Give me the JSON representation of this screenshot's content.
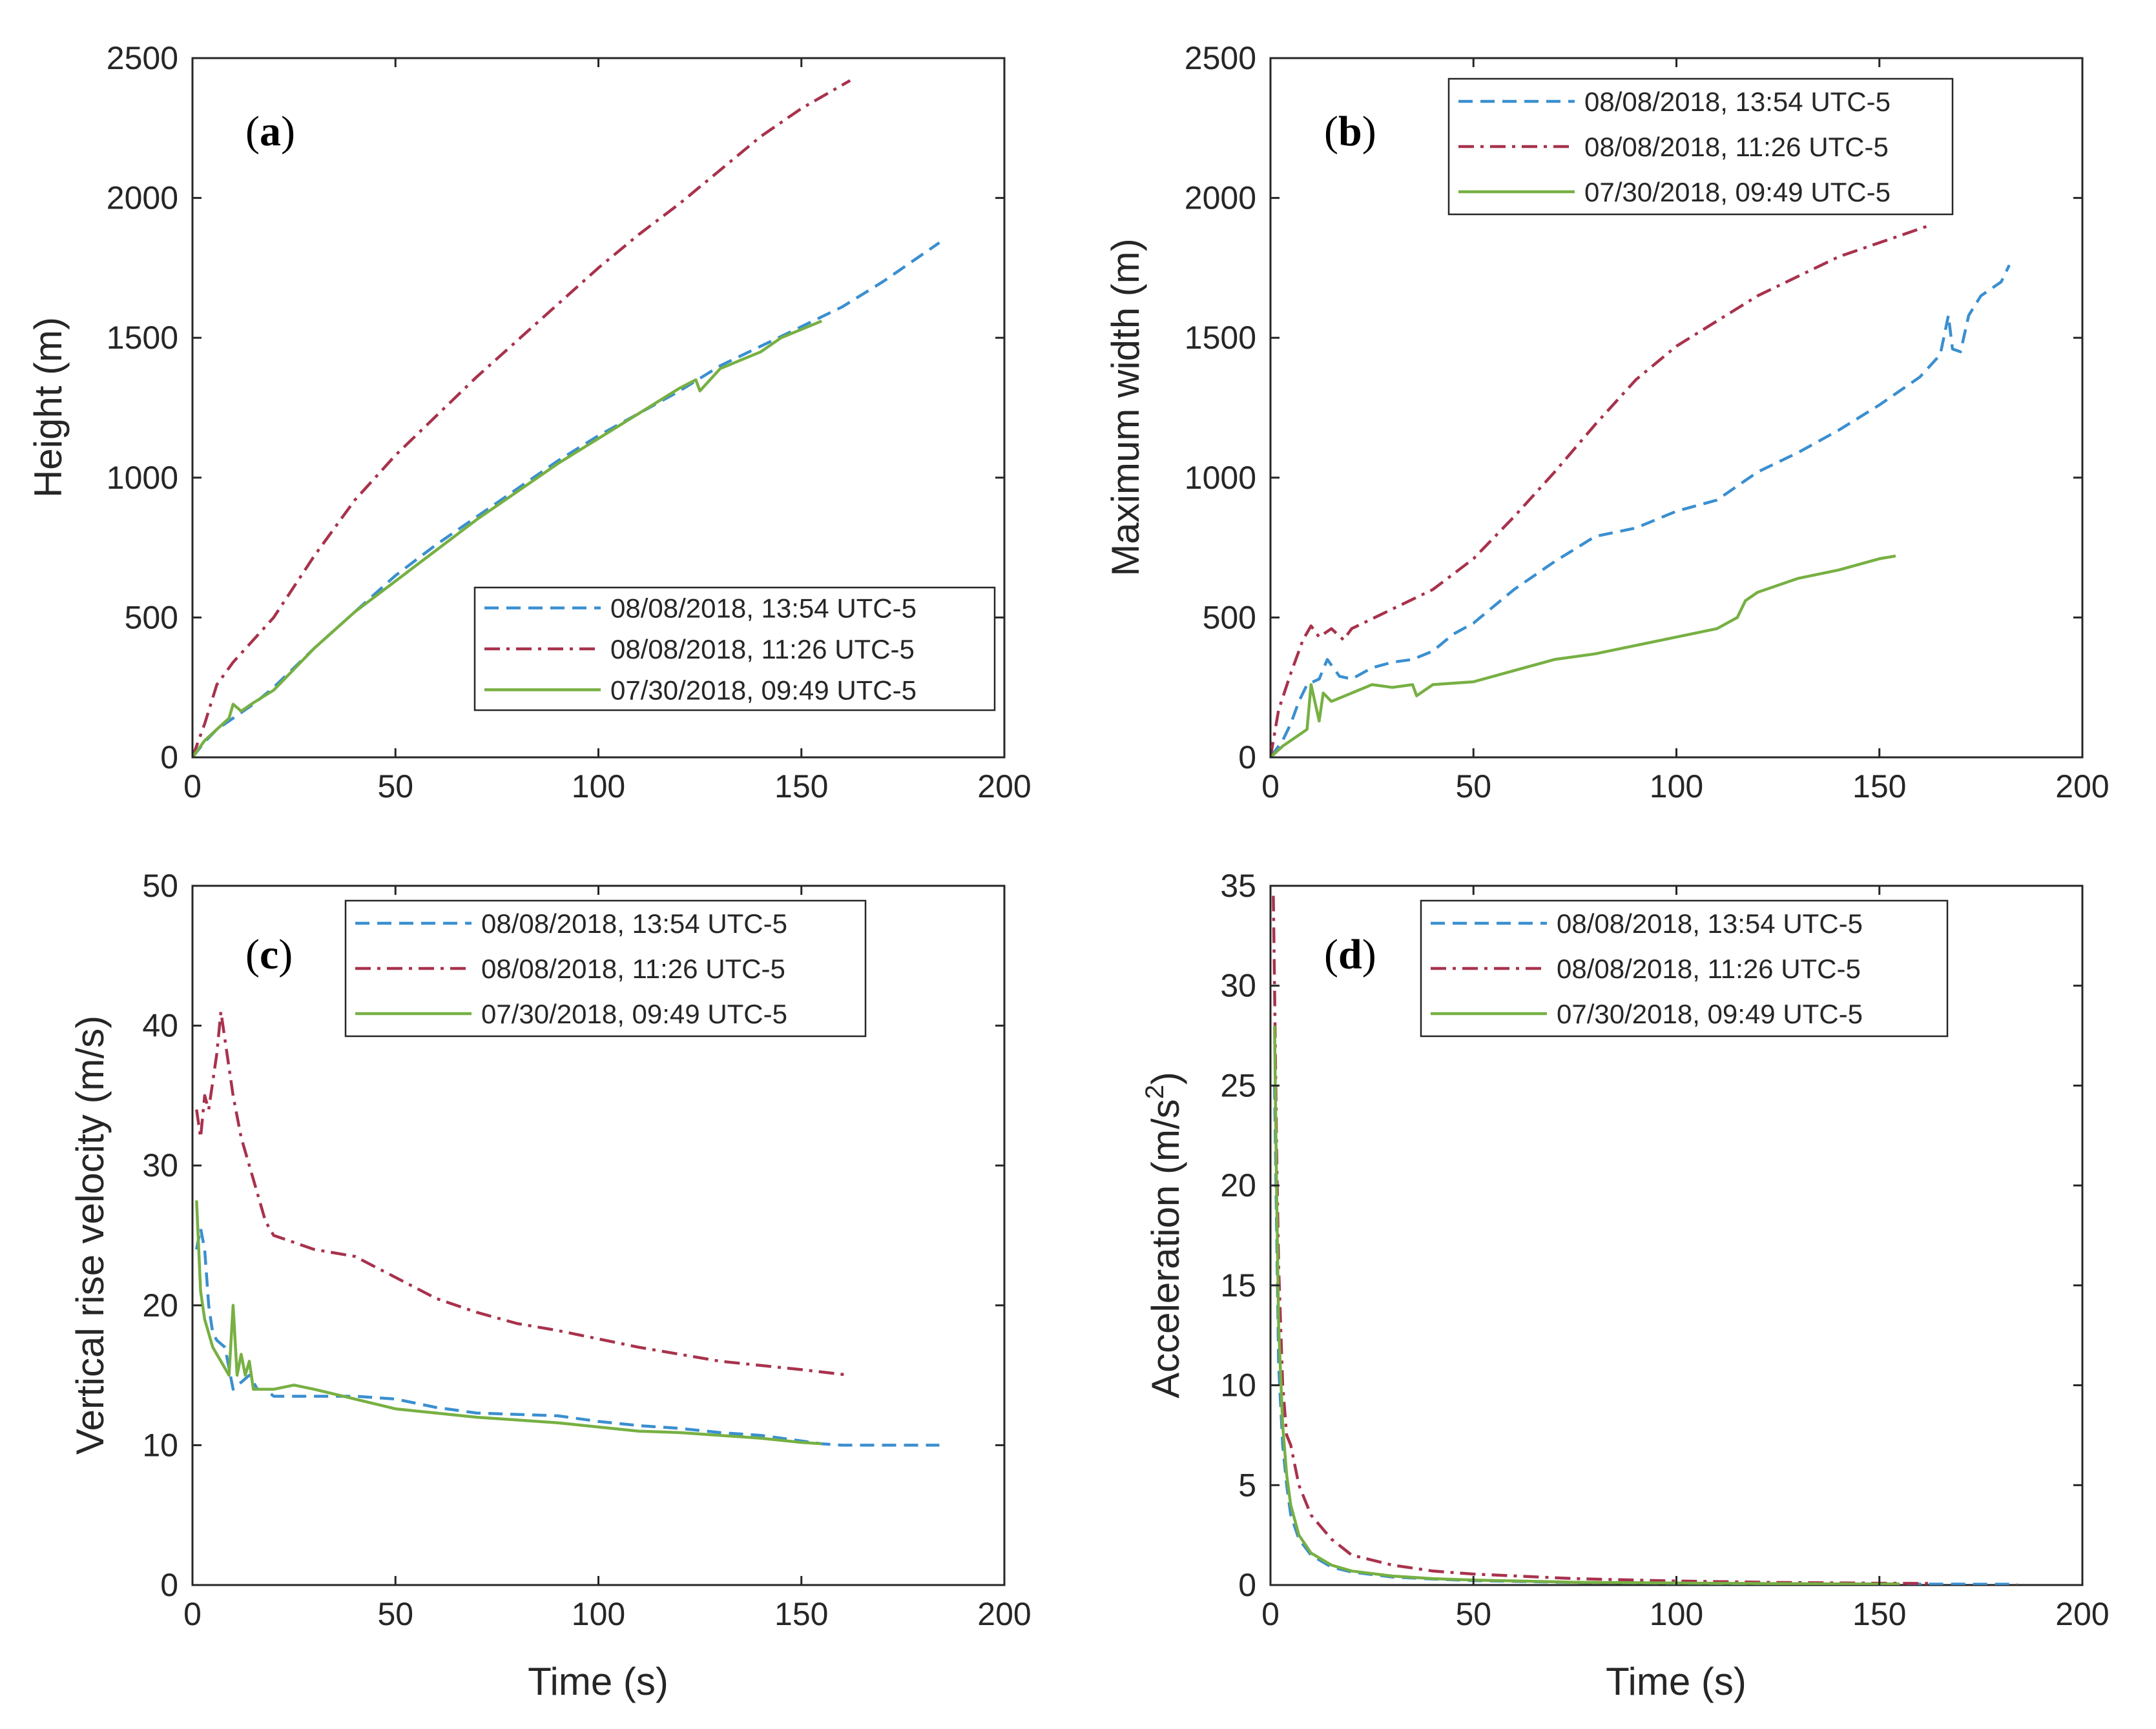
{
  "figure": {
    "legend_entries": [
      "08/08/2018, 13:54 UTC-5",
      "08/08/2018, 11:26 UTC-5",
      "07/30/2018, 09:49 UTC-5"
    ],
    "series_styles": [
      {
        "name": "08/08/2018, 13:54 UTC-5",
        "color": "#3a8fd0",
        "dash": "dashed"
      },
      {
        "name": "08/08/2018, 11:26 UTC-5",
        "color": "#a8324c",
        "dash": "dashdot"
      },
      {
        "name": "07/30/2018, 09:49 UTC-5",
        "color": "#77b043",
        "dash": "solid"
      }
    ]
  },
  "chart_data": [
    {
      "id": "a",
      "type": "line",
      "panel_label": "a",
      "xlabel": "",
      "ylabel": "Height (m)",
      "xlim": [
        0,
        200
      ],
      "ylim": [
        0,
        2500
      ],
      "xticks": [
        "0",
        "50",
        "100",
        "150",
        "200"
      ],
      "yticks": [
        "0",
        "500",
        "1000",
        "1500",
        "2000",
        "2500"
      ],
      "legend_position": "bottom-right",
      "series": [
        {
          "name": "08/08/2018, 13:54 UTC-5",
          "x": [
            0,
            3,
            6,
            10,
            15,
            20,
            30,
            40,
            50,
            60,
            70,
            80,
            90,
            100,
            110,
            120,
            130,
            140,
            150,
            160,
            170,
            184
          ],
          "y": [
            0,
            55,
            100,
            140,
            190,
            250,
            390,
            520,
            650,
            760,
            860,
            960,
            1060,
            1150,
            1230,
            1310,
            1400,
            1470,
            1540,
            1610,
            1700,
            1840
          ]
        },
        {
          "name": "08/08/2018, 11:26 UTC-5",
          "x": [
            0,
            3,
            6,
            10,
            15,
            20,
            30,
            40,
            50,
            60,
            70,
            80,
            90,
            100,
            110,
            120,
            130,
            140,
            150,
            162
          ],
          "y": [
            0,
            120,
            260,
            340,
            420,
            500,
            720,
            920,
            1080,
            1220,
            1360,
            1490,
            1620,
            1750,
            1870,
            1980,
            2100,
            2220,
            2320,
            2420
          ]
        },
        {
          "name": "07/30/2018, 09:49 UTC-5",
          "x": [
            0,
            3,
            6,
            9,
            10,
            12,
            15,
            20,
            30,
            40,
            50,
            60,
            70,
            80,
            90,
            100,
            110,
            120,
            124,
            125,
            130,
            140,
            145,
            150,
            155
          ],
          "y": [
            0,
            60,
            100,
            140,
            190,
            165,
            195,
            240,
            390,
            520,
            630,
            740,
            850,
            950,
            1050,
            1140,
            1230,
            1320,
            1350,
            1310,
            1390,
            1450,
            1500,
            1530,
            1560
          ]
        }
      ]
    },
    {
      "id": "b",
      "type": "line",
      "panel_label": "b",
      "xlabel": "",
      "ylabel": "Maximum width (m)",
      "xlim": [
        0,
        200
      ],
      "ylim": [
        0,
        2500
      ],
      "xticks": [
        "0",
        "50",
        "100",
        "150",
        "200"
      ],
      "yticks": [
        "0",
        "500",
        "1000",
        "1500",
        "2000",
        "2500"
      ],
      "legend_position": "top-right",
      "series": [
        {
          "name": "08/08/2018, 13:54 UTC-5",
          "x": [
            0,
            3,
            5,
            7,
            9,
            12,
            14,
            17,
            20,
            25,
            30,
            35,
            40,
            45,
            50,
            60,
            70,
            80,
            90,
            100,
            110,
            120,
            130,
            140,
            150,
            160,
            165,
            167,
            168,
            170,
            172,
            175,
            180,
            182
          ],
          "y": [
            0,
            60,
            120,
            200,
            260,
            280,
            350,
            290,
            280,
            320,
            340,
            350,
            380,
            440,
            480,
            600,
            700,
            790,
            820,
            880,
            920,
            1020,
            1090,
            1170,
            1260,
            1360,
            1440,
            1580,
            1460,
            1450,
            1580,
            1650,
            1700,
            1760
          ]
        },
        {
          "name": "08/08/2018, 11:26 UTC-5",
          "x": [
            0,
            2,
            5,
            8,
            10,
            12,
            15,
            18,
            20,
            30,
            40,
            50,
            60,
            70,
            80,
            90,
            100,
            110,
            120,
            130,
            140,
            150,
            162
          ],
          "y": [
            0,
            170,
            300,
            420,
            470,
            430,
            460,
            420,
            460,
            530,
            600,
            710,
            860,
            1020,
            1190,
            1350,
            1470,
            1560,
            1650,
            1720,
            1790,
            1840,
            1900
          ]
        },
        {
          "name": "07/30/2018, 09:49 UTC-5",
          "x": [
            0,
            3,
            6,
            9,
            10,
            12,
            13,
            15,
            20,
            25,
            30,
            35,
            36,
            40,
            50,
            60,
            70,
            80,
            90,
            100,
            110,
            115,
            117,
            120,
            130,
            140,
            150,
            154
          ],
          "y": [
            0,
            40,
            70,
            100,
            260,
            130,
            230,
            200,
            230,
            260,
            250,
            260,
            220,
            260,
            270,
            310,
            350,
            370,
            400,
            430,
            460,
            500,
            560,
            590,
            640,
            670,
            710,
            720
          ]
        }
      ]
    },
    {
      "id": "c",
      "type": "line",
      "panel_label": "c",
      "xlabel": "Time (s)",
      "ylabel": "Vertical rise velocity (m/s)",
      "xlim": [
        0,
        200
      ],
      "ylim": [
        0,
        50
      ],
      "xticks": [
        "0",
        "50",
        "100",
        "150",
        "200"
      ],
      "yticks": [
        "0",
        "10",
        "20",
        "30",
        "40",
        "50"
      ],
      "legend_position": "top-right",
      "series": [
        {
          "name": "08/08/2018, 13:54 UTC-5",
          "x": [
            1,
            2,
            3,
            4,
            5,
            6,
            8,
            10,
            12,
            14,
            16,
            18,
            20,
            25,
            30,
            40,
            50,
            60,
            70,
            80,
            90,
            100,
            110,
            120,
            130,
            140,
            150,
            155,
            160,
            170,
            184
          ],
          "y": [
            24,
            25.5,
            24,
            20,
            18,
            17.5,
            17,
            14,
            14.5,
            15,
            14,
            14,
            13.5,
            13.5,
            13.5,
            13.5,
            13.3,
            12.7,
            12.3,
            12.2,
            12.1,
            11.7,
            11.4,
            11.2,
            10.9,
            10.7,
            10.3,
            10.1,
            10.0,
            10.0,
            10.0
          ]
        },
        {
          "name": "08/08/2018, 11:26 UTC-5",
          "x": [
            1,
            2,
            3,
            4,
            5,
            6,
            7,
            8,
            10,
            12,
            15,
            18,
            20,
            25,
            30,
            40,
            50,
            60,
            70,
            80,
            90,
            100,
            110,
            120,
            130,
            140,
            150,
            162
          ],
          "y": [
            34,
            32,
            35,
            34,
            36,
            38,
            41,
            39,
            35,
            32,
            29,
            26,
            25,
            24.5,
            24,
            23.5,
            22,
            20.5,
            19.5,
            18.7,
            18.2,
            17.6,
            17.0,
            16.5,
            16.0,
            15.7,
            15.4,
            15.0
          ]
        },
        {
          "name": "07/30/2018, 09:49 UTC-5",
          "x": [
            1,
            2,
            3,
            5,
            7,
            9,
            10,
            11,
            12,
            13,
            14,
            15,
            20,
            25,
            30,
            40,
            50,
            60,
            70,
            80,
            90,
            100,
            110,
            120,
            130,
            140,
            150,
            155
          ],
          "y": [
            27.5,
            21,
            19,
            17,
            16,
            15,
            20,
            15,
            16.5,
            15,
            16,
            14,
            14,
            14.3,
            14,
            13.3,
            12.6,
            12.3,
            12.0,
            11.8,
            11.6,
            11.3,
            11.0,
            10.9,
            10.7,
            10.5,
            10.2,
            10.1
          ]
        }
      ]
    },
    {
      "id": "d",
      "type": "line",
      "panel_label": "d",
      "xlabel": "Time (s)",
      "ylabel": "Acceleration (m/s",
      "ylabel_superscript": "2",
      "ylabel_suffix": ")",
      "xlim": [
        0,
        200
      ],
      "ylim": [
        0,
        35
      ],
      "xticks": [
        "0",
        "50",
        "100",
        "150",
        "200"
      ],
      "yticks": [
        "0",
        "5",
        "10",
        "15",
        "20",
        "25",
        "30",
        "35"
      ],
      "legend_position": "top-right",
      "series": [
        {
          "name": "08/08/2018, 13:54 UTC-5",
          "x": [
            1,
            1.5,
            2,
            3,
            4,
            5,
            7,
            10,
            15,
            20,
            30,
            40,
            50,
            75,
            100,
            125,
            150,
            184
          ],
          "y": [
            25,
            18,
            11,
            7,
            5,
            3.5,
            2.3,
            1.5,
            0.9,
            0.65,
            0.4,
            0.3,
            0.22,
            0.13,
            0.09,
            0.06,
            0.05,
            0.04
          ]
        },
        {
          "name": "08/08/2018, 11:26 UTC-5",
          "x": [
            0.7,
            1,
            1.5,
            2,
            3,
            4,
            5,
            7,
            10,
            15,
            20,
            30,
            40,
            50,
            75,
            100,
            125,
            150,
            162
          ],
          "y": [
            34.5,
            30,
            22,
            16,
            10,
            7.5,
            7,
            5,
            3.5,
            2.3,
            1.5,
            1.0,
            0.7,
            0.55,
            0.32,
            0.2,
            0.13,
            0.09,
            0.08
          ]
        },
        {
          "name": "07/30/2018, 09:49 UTC-5",
          "x": [
            1,
            1.5,
            2,
            3,
            4,
            5,
            7,
            10,
            15,
            20,
            30,
            40,
            50,
            75,
            100,
            125,
            150,
            155
          ],
          "y": [
            28,
            20,
            13,
            8,
            5.5,
            4,
            2.5,
            1.6,
            1.0,
            0.7,
            0.45,
            0.32,
            0.25,
            0.14,
            0.1,
            0.07,
            0.05,
            0.05
          ]
        }
      ]
    }
  ]
}
